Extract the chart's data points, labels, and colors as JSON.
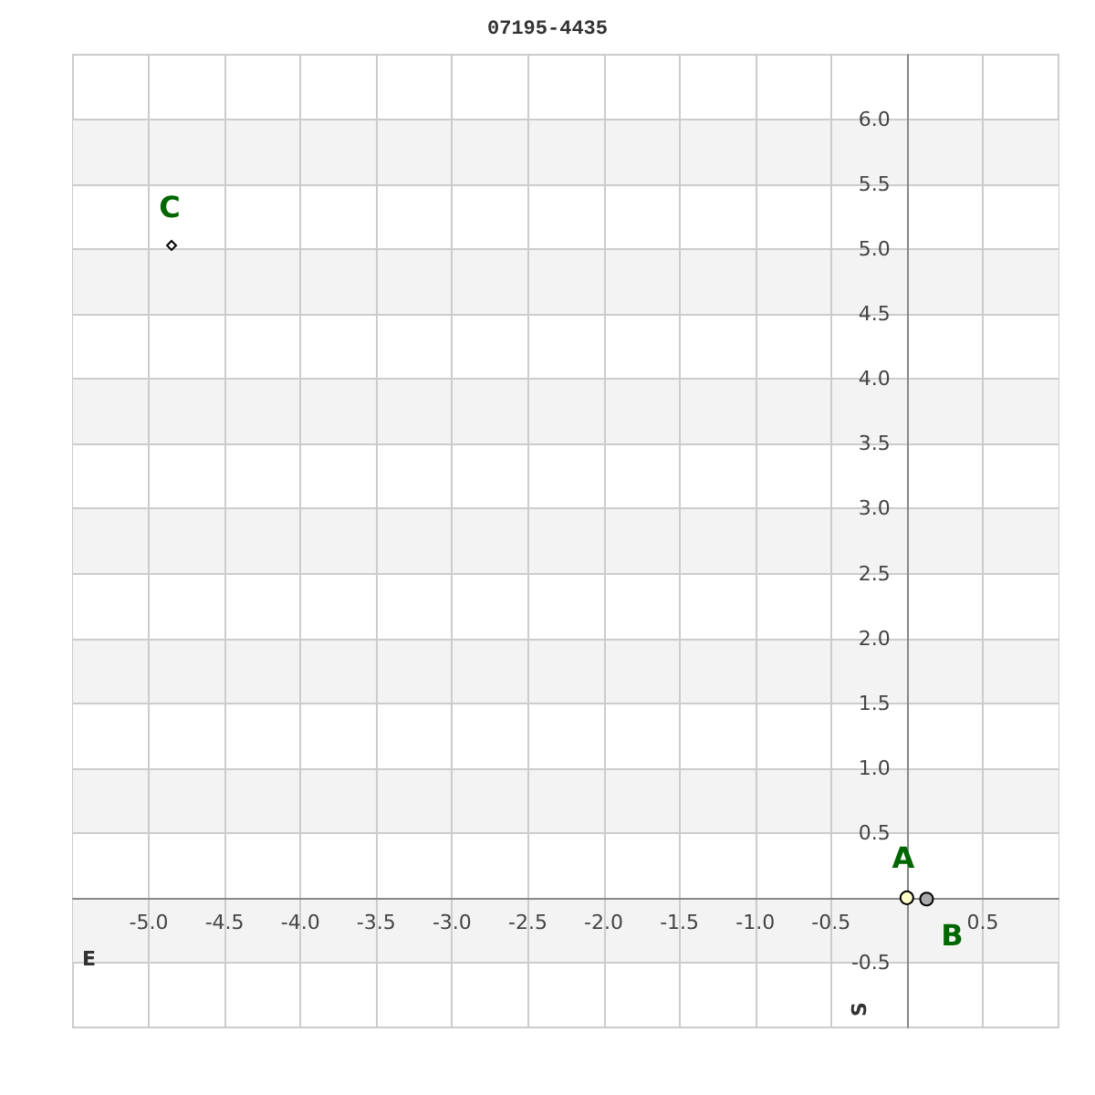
{
  "chart_data": {
    "type": "scatter",
    "title": "07195-4435",
    "xlabel": "E",
    "ylabel": "S",
    "xlim": [
      -5.5,
      1.0
    ],
    "ylim": [
      -1.0,
      6.5
    ],
    "xticks": [
      {
        "value": -5,
        "label": "-5.0"
      },
      -4.5,
      {
        "value": -4,
        "label": "-4.0"
      },
      -3.5,
      {
        "value": -3,
        "label": "-3.0"
      },
      -2.5,
      {
        "value": -2,
        "label": "-2.0"
      },
      -1.5,
      {
        "value": -1,
        "label": "-1.0"
      },
      -0.5,
      {
        "value": 0,
        "label": null
      },
      0.5
    ],
    "yticks": [
      -0.5,
      {
        "value": 0,
        "label": null
      },
      0.5,
      {
        "value": 1,
        "label": "1.0"
      },
      1.5,
      {
        "value": 2,
        "label": "2.0"
      },
      2.5,
      {
        "value": 3,
        "label": "3.0"
      },
      3.5,
      {
        "value": 4,
        "label": "4.0"
      },
      4.5,
      {
        "value": 5,
        "label": "5.0"
      },
      5.5,
      {
        "value": 6,
        "label": "6.0"
      }
    ],
    "grid": true,
    "legend": false,
    "series": [
      {
        "name": "A",
        "color": "#ffffcc",
        "marker": "circle",
        "x": [
          0
        ],
        "values": [
          0
        ]
      },
      {
        "name": "B",
        "color": "#aaaaaa",
        "marker": "circle",
        "x": [
          0.13
        ],
        "values": [
          -0.01
        ]
      },
      {
        "name": "C",
        "color": "#ffffff",
        "marker": "diamond",
        "x": [
          -4.85
        ],
        "values": [
          5.03
        ]
      }
    ]
  }
}
